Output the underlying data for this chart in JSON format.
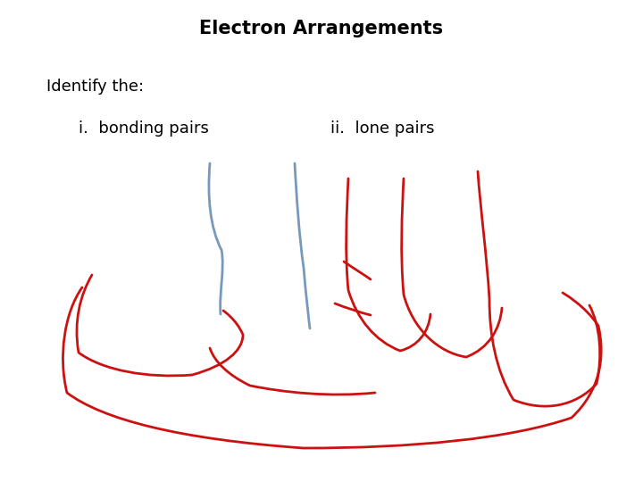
{
  "title": "Electron Arrangements",
  "title_fontsize": 15,
  "title_fontweight": "bold",
  "label_identify": "Identify the:",
  "label_bonding": "i.  bonding pairs",
  "label_lone": "ii.  lone pairs",
  "label_fontsize": 13,
  "bg_color": "#ffffff",
  "blue_color": "#7799bb",
  "red_color": "#cc1111",
  "line_width": 2.0
}
